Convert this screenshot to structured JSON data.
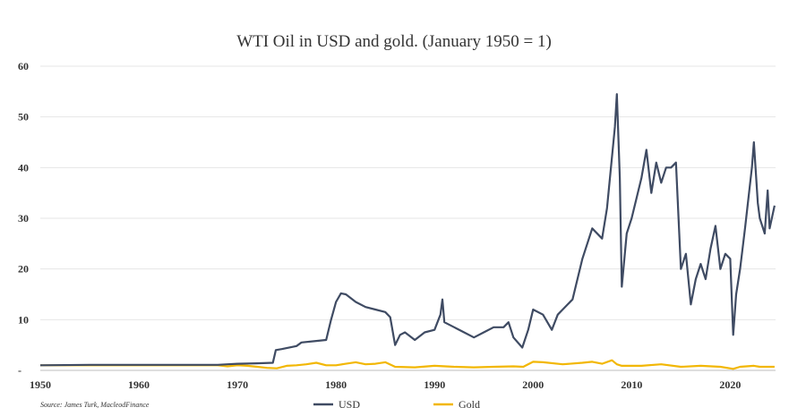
{
  "chart_data": {
    "type": "line",
    "title": "WTI Oil in USD and gold. (January 1950 = 1)",
    "xlabel": "",
    "ylabel": "",
    "xlim": [
      1950,
      2024.6
    ],
    "ylim": [
      0,
      60
    ],
    "x_ticks": [
      "1950",
      "1960",
      "1970",
      "1980",
      "1990",
      "2000",
      "2010",
      "2020"
    ],
    "y_ticks": [
      "60",
      "50",
      "40",
      "30",
      "20",
      "10",
      "-"
    ],
    "grid": "horizontal",
    "legend_position": "bottom",
    "source": "Source: James Turk, MacleodFinance",
    "series": [
      {
        "name": "USD",
        "color": "#3f4b63",
        "points": [
          [
            1950,
            1.0
          ],
          [
            1955,
            1.1
          ],
          [
            1960,
            1.1
          ],
          [
            1965,
            1.1
          ],
          [
            1968,
            1.1
          ],
          [
            1969,
            1.2
          ],
          [
            1970,
            1.3
          ],
          [
            1972,
            1.4
          ],
          [
            1973.6,
            1.5
          ],
          [
            1973.9,
            4.0
          ],
          [
            1974.5,
            4.2
          ],
          [
            1976,
            4.8
          ],
          [
            1976.5,
            5.5
          ],
          [
            1978,
            5.8
          ],
          [
            1979,
            6.0
          ],
          [
            1979.5,
            10.0
          ],
          [
            1980,
            13.5
          ],
          [
            1980.5,
            15.2
          ],
          [
            1981,
            15.0
          ],
          [
            1982,
            13.5
          ],
          [
            1983,
            12.5
          ],
          [
            1984,
            12.0
          ],
          [
            1985,
            11.5
          ],
          [
            1985.5,
            10.5
          ],
          [
            1986,
            5.0
          ],
          [
            1986.5,
            7.0
          ],
          [
            1987,
            7.5
          ],
          [
            1988,
            6.0
          ],
          [
            1989,
            7.5
          ],
          [
            1990,
            8.0
          ],
          [
            1990.6,
            11.0
          ],
          [
            1990.8,
            14.0
          ],
          [
            1991,
            9.5
          ],
          [
            1992,
            8.5
          ],
          [
            1993,
            7.5
          ],
          [
            1994,
            6.5
          ],
          [
            1995,
            7.5
          ],
          [
            1996,
            8.5
          ],
          [
            1997,
            8.5
          ],
          [
            1997.5,
            9.5
          ],
          [
            1998,
            6.5
          ],
          [
            1998.9,
            4.5
          ],
          [
            1999.5,
            8.0
          ],
          [
            2000,
            12.0
          ],
          [
            2001,
            11.0
          ],
          [
            2001.9,
            8.0
          ],
          [
            2002.5,
            11.0
          ],
          [
            2003,
            12.0
          ],
          [
            2004,
            14.0
          ],
          [
            2005,
            22.0
          ],
          [
            2006,
            28.0
          ],
          [
            2007,
            26.0
          ],
          [
            2007.5,
            32.0
          ],
          [
            2008.3,
            48.0
          ],
          [
            2008.5,
            54.5
          ],
          [
            2008.8,
            38.0
          ],
          [
            2009,
            16.5
          ],
          [
            2009.5,
            27.0
          ],
          [
            2010,
            30.0
          ],
          [
            2011,
            38.0
          ],
          [
            2011.5,
            43.5
          ],
          [
            2012,
            35.0
          ],
          [
            2012.5,
            41.0
          ],
          [
            2013,
            37.0
          ],
          [
            2013.5,
            40.0
          ],
          [
            2014,
            40.0
          ],
          [
            2014.5,
            41.0
          ],
          [
            2015,
            20.0
          ],
          [
            2015.5,
            23.0
          ],
          [
            2016,
            13.0
          ],
          [
            2016.5,
            18.0
          ],
          [
            2017,
            21.0
          ],
          [
            2017.5,
            18.0
          ],
          [
            2018,
            24.0
          ],
          [
            2018.5,
            28.5
          ],
          [
            2019,
            20.0
          ],
          [
            2019.5,
            23.0
          ],
          [
            2020,
            22.0
          ],
          [
            2020.3,
            7.0
          ],
          [
            2020.6,
            15.0
          ],
          [
            2021,
            20.0
          ],
          [
            2021.5,
            28.0
          ],
          [
            2022.2,
            40.0
          ],
          [
            2022.4,
            45.0
          ],
          [
            2022.8,
            33.0
          ],
          [
            2023,
            30.0
          ],
          [
            2023.5,
            27.0
          ],
          [
            2023.8,
            35.5
          ],
          [
            2024,
            28.0
          ],
          [
            2024.5,
            32.5
          ]
        ]
      },
      {
        "name": "Gold",
        "color": "#f2b705",
        "points": [
          [
            1950,
            1.0
          ],
          [
            1960,
            1.0
          ],
          [
            1965,
            1.0
          ],
          [
            1968,
            1.0
          ],
          [
            1969,
            0.8
          ],
          [
            1970,
            1.0
          ],
          [
            1971,
            0.9
          ],
          [
            1972,
            0.7
          ],
          [
            1973,
            0.5
          ],
          [
            1974,
            0.4
          ],
          [
            1975,
            0.9
          ],
          [
            1976,
            1.0
          ],
          [
            1977,
            1.2
          ],
          [
            1978,
            1.5
          ],
          [
            1979,
            1.0
          ],
          [
            1980,
            1.0
          ],
          [
            1981,
            1.3
          ],
          [
            1982,
            1.6
          ],
          [
            1983,
            1.2
          ],
          [
            1984,
            1.3
          ],
          [
            1985,
            1.6
          ],
          [
            1986,
            0.7
          ],
          [
            1988,
            0.6
          ],
          [
            1990,
            0.9
          ],
          [
            1992,
            0.7
          ],
          [
            1994,
            0.6
          ],
          [
            1996,
            0.7
          ],
          [
            1998,
            0.8
          ],
          [
            1999,
            0.7
          ],
          [
            2000,
            1.7
          ],
          [
            2001,
            1.6
          ],
          [
            2003,
            1.2
          ],
          [
            2005,
            1.5
          ],
          [
            2006,
            1.7
          ],
          [
            2007,
            1.3
          ],
          [
            2008,
            2.0
          ],
          [
            2008.5,
            1.2
          ],
          [
            2009,
            0.9
          ],
          [
            2011,
            0.9
          ],
          [
            2013,
            1.2
          ],
          [
            2015,
            0.7
          ],
          [
            2017,
            0.9
          ],
          [
            2019,
            0.7
          ],
          [
            2020.3,
            0.3
          ],
          [
            2021,
            0.7
          ],
          [
            2022.4,
            0.9
          ],
          [
            2023,
            0.7
          ],
          [
            2024.5,
            0.7
          ]
        ]
      }
    ]
  }
}
